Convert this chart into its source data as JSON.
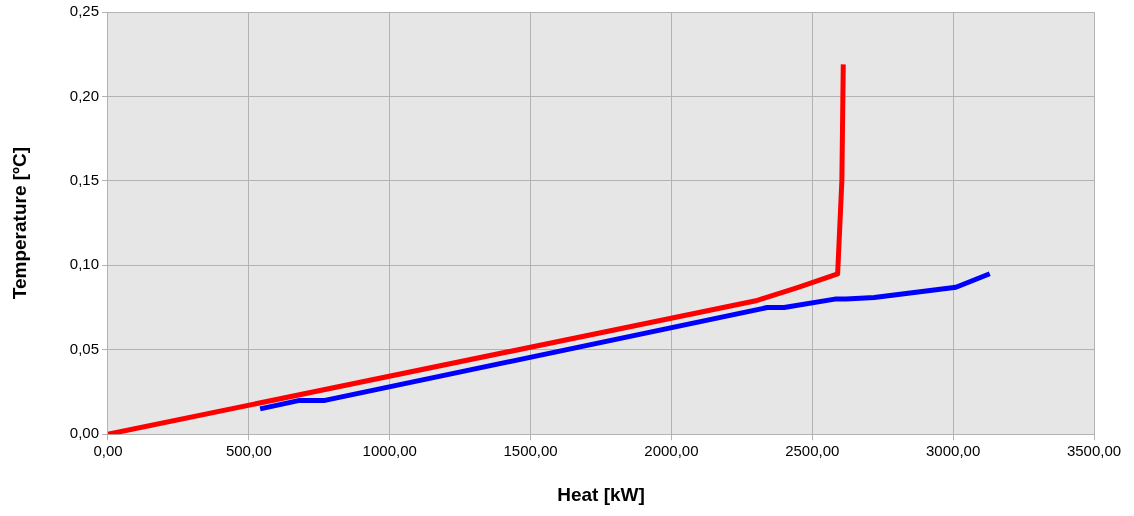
{
  "chart_data": {
    "type": "line",
    "xlabel": "Heat [kW]",
    "ylabel": "Temperature [ºC]",
    "xlim": [
      0,
      3500
    ],
    "ylim": [
      0,
      0.25
    ],
    "xticks": [
      {
        "value": 0,
        "label": "0,00"
      },
      {
        "value": 500,
        "label": "500,00"
      },
      {
        "value": 1000,
        "label": "1000,00"
      },
      {
        "value": 1500,
        "label": "1500,00"
      },
      {
        "value": 2000,
        "label": "2000,00"
      },
      {
        "value": 2500,
        "label": "2500,00"
      },
      {
        "value": 3000,
        "label": "3000,00"
      },
      {
        "value": 3500,
        "label": "3500,00"
      }
    ],
    "yticks": [
      {
        "value": 0,
        "label": "0,00"
      },
      {
        "value": 0.05,
        "label": "0,05"
      },
      {
        "value": 0.1,
        "label": "0,10"
      },
      {
        "value": 0.15,
        "label": "0,15"
      },
      {
        "value": 0.2,
        "label": "0,20"
      },
      {
        "value": 0.25,
        "label": "0,25"
      }
    ],
    "grid": true,
    "legend": false,
    "marker": "none",
    "line_style": "solid",
    "series": [
      {
        "color": "#ff0000",
        "x": [
          0,
          2300,
          2450,
          2590,
          2605,
          2610
        ],
        "values": [
          0,
          0.079,
          0.087,
          0.095,
          0.15,
          0.219
        ]
      },
      {
        "color": "#0000ff",
        "x": [
          540,
          680,
          770,
          2340,
          2400,
          2580,
          2620,
          2720,
          3010,
          3130
        ],
        "values": [
          0.015,
          0.02,
          0.02,
          0.075,
          0.075,
          0.08,
          0.08,
          0.081,
          0.087,
          0.095
        ]
      }
    ]
  }
}
